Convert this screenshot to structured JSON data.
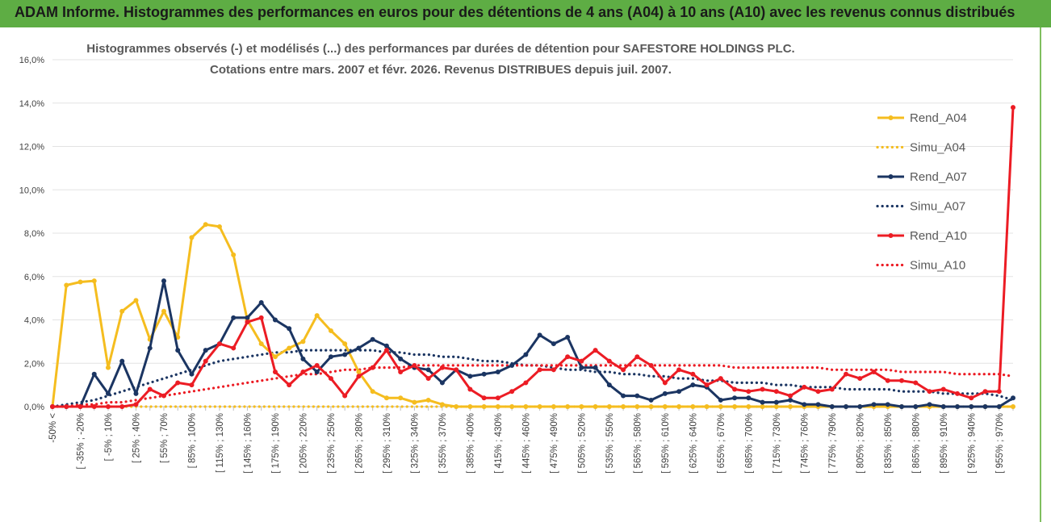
{
  "header": {
    "title": "ADAM Informe. Histogrammes des performances en euros pour des détentions de 4 ans (A04) à 10 ans (A10) avec les revenus connus distribués"
  },
  "colors": {
    "header_bg": "#5ead44",
    "a04": "#f5bd1f",
    "a07": "#1b3562",
    "a10": "#ec1c24"
  },
  "chart_data": {
    "type": "line",
    "title": [
      "Histogrammes observés (-) et modélisés (...) des performances par durées de détention pour SAFESTORE HOLDINGS PLC.",
      "Cotations entre mars. 2007 et févr. 2026. Revenus DISTRIBUES depuis juil. 2007."
    ],
    "ylim": [
      0,
      0.16
    ],
    "yticks": [
      0,
      0.02,
      0.04,
      0.06,
      0.08,
      0.1,
      0.12,
      0.14,
      0.16
    ],
    "ytick_labels": [
      "0,0%",
      "2,0%",
      "4,0%",
      "6,0%",
      "8,0%",
      "10,0%",
      "12,0%",
      "14,0%",
      "16,0%"
    ],
    "x_labels": [
      "-50% <",
      "[ -35% ; -20%",
      "[ -5% ; 10%",
      "[ 25% ; 40%",
      "[ 55% ; 70%",
      "[ 85% ; 100%",
      "[ 115% ; 130%",
      "[ 145% ; 160%",
      "[ 175% ; 190%",
      "[ 205% ; 220%",
      "[ 235% ; 250%",
      "[ 265% ; 280%",
      "[ 295% ; 310%",
      "[ 325% ; 340%",
      "[ 355% ; 370%",
      "[ 385% ; 400%",
      "[ 415% ; 430%",
      "[ 445% ; 460%",
      "[ 475% ; 490%",
      "[ 505% ; 520%",
      "[ 535% ; 550%",
      "[ 565% ; 580%",
      "[ 595% ; 610%",
      "[ 625% ; 640%",
      "[ 655% ; 670%",
      "[ 685% ; 700%",
      "[ 715% ; 730%",
      "[ 745% ; 760%",
      "[ 775% ; 790%",
      "[ 805% ; 820%",
      "[ 835% ; 850%",
      "[ 865% ; 880%",
      "[ 895% ; 910%",
      "[ 925% ; 940%",
      "[ 955% ; 970%"
    ],
    "categories_count": 70,
    "series": [
      {
        "name": "Rend_A04",
        "style": "solid",
        "color": "#f5bd1f",
        "values": [
          0.0,
          0.056,
          0.0575,
          0.058,
          0.018,
          0.044,
          0.049,
          0.031,
          0.044,
          0.032,
          0.078,
          0.084,
          0.083,
          0.07,
          0.04,
          0.029,
          0.023,
          0.027,
          0.03,
          0.042,
          0.035,
          0.029,
          0.016,
          0.007,
          0.004,
          0.004,
          0.002,
          0.003,
          0.001,
          0.0,
          0.0,
          0.0,
          0.0,
          0.0,
          0.0,
          0.0,
          0.0,
          0.0,
          0.0,
          0.0,
          0.0,
          0.0,
          0.0,
          0.0,
          0.0,
          0.0,
          0.0,
          0.0,
          0.0,
          0.0,
          0.0,
          0.0,
          0.0,
          0.0,
          0.0,
          0.0,
          0.0,
          0.0,
          0.0,
          0.0,
          0.0,
          0.0,
          0.0,
          0.0,
          0.0,
          0.0,
          0.0,
          0.0,
          0.0,
          0.0
        ]
      },
      {
        "name": "Simu_A04",
        "style": "dotted",
        "color": "#f5bd1f",
        "values": [
          0.0,
          0.0,
          0.0,
          0.0,
          0.0,
          0.0,
          0.0,
          0.0,
          0.0,
          0.0,
          0.0,
          0.0,
          0.0,
          0.0,
          0.0,
          0.0,
          0.0,
          0.0,
          0.0,
          0.0,
          0.0,
          0.0,
          0.0,
          0.0,
          0.0,
          0.0,
          0.0,
          0.0,
          0.0,
          0.0,
          0.0,
          0.0,
          0.0,
          0.0,
          0.0,
          0.0,
          0.0,
          0.0,
          0.0,
          0.0,
          0.0,
          0.0,
          0.0,
          0.0,
          0.0,
          0.0,
          0.0,
          0.0,
          0.0,
          0.0,
          0.0,
          0.0,
          0.0,
          0.0,
          0.0,
          0.0,
          0.0,
          0.0,
          0.0,
          0.0,
          0.0,
          0.0,
          0.0,
          0.0,
          0.0,
          0.0,
          0.0,
          0.0,
          0.0,
          0.0
        ]
      },
      {
        "name": "Rend_A07",
        "style": "solid",
        "color": "#1b3562",
        "values": [
          0.0,
          0.0,
          0.0,
          0.015,
          0.006,
          0.021,
          0.006,
          0.027,
          0.058,
          0.026,
          0.015,
          0.026,
          0.029,
          0.041,
          0.041,
          0.048,
          0.04,
          0.036,
          0.022,
          0.016,
          0.023,
          0.024,
          0.027,
          0.031,
          0.028,
          0.022,
          0.018,
          0.017,
          0.011,
          0.017,
          0.014,
          0.015,
          0.016,
          0.019,
          0.024,
          0.033,
          0.029,
          0.032,
          0.018,
          0.018,
          0.01,
          0.005,
          0.005,
          0.003,
          0.006,
          0.007,
          0.01,
          0.009,
          0.003,
          0.004,
          0.004,
          0.002,
          0.002,
          0.003,
          0.001,
          0.001,
          0.0,
          0.0,
          0.0,
          0.001,
          0.001,
          0.0,
          0.0,
          0.001,
          0.0,
          0.0,
          0.0,
          0.0,
          0.0,
          0.004
        ]
      },
      {
        "name": "Simu_A07",
        "style": "dotted",
        "color": "#1b3562",
        "values": [
          0.0,
          0.001,
          0.002,
          0.003,
          0.005,
          0.007,
          0.009,
          0.011,
          0.013,
          0.015,
          0.017,
          0.019,
          0.021,
          0.022,
          0.023,
          0.024,
          0.025,
          0.025,
          0.026,
          0.026,
          0.026,
          0.026,
          0.026,
          0.026,
          0.025,
          0.025,
          0.024,
          0.024,
          0.023,
          0.023,
          0.022,
          0.021,
          0.021,
          0.02,
          0.019,
          0.019,
          0.018,
          0.017,
          0.017,
          0.016,
          0.016,
          0.015,
          0.015,
          0.014,
          0.014,
          0.013,
          0.013,
          0.012,
          0.012,
          0.011,
          0.011,
          0.011,
          0.01,
          0.01,
          0.009,
          0.009,
          0.009,
          0.008,
          0.008,
          0.008,
          0.008,
          0.007,
          0.007,
          0.007,
          0.006,
          0.006,
          0.006,
          0.006,
          0.005,
          0.003
        ]
      },
      {
        "name": "Rend_A10",
        "style": "solid",
        "color": "#ec1c24",
        "values": [
          0.0,
          0.0,
          0.0,
          0.0,
          0.0,
          0.0,
          0.001,
          0.008,
          0.005,
          0.011,
          0.01,
          0.021,
          0.029,
          0.027,
          0.039,
          0.041,
          0.016,
          0.01,
          0.016,
          0.019,
          0.013,
          0.005,
          0.014,
          0.018,
          0.026,
          0.016,
          0.019,
          0.013,
          0.018,
          0.017,
          0.008,
          0.004,
          0.004,
          0.007,
          0.011,
          0.017,
          0.017,
          0.023,
          0.021,
          0.026,
          0.021,
          0.017,
          0.023,
          0.019,
          0.011,
          0.017,
          0.015,
          0.01,
          0.013,
          0.008,
          0.007,
          0.008,
          0.007,
          0.005,
          0.009,
          0.007,
          0.008,
          0.015,
          0.013,
          0.016,
          0.012,
          0.012,
          0.011,
          0.007,
          0.008,
          0.006,
          0.004,
          0.007,
          0.007,
          0.138
        ]
      },
      {
        "name": "Simu_A10",
        "style": "dotted",
        "color": "#ec1c24",
        "values": [
          0.0,
          0.0,
          0.001,
          0.001,
          0.002,
          0.002,
          0.003,
          0.004,
          0.005,
          0.006,
          0.007,
          0.008,
          0.009,
          0.01,
          0.011,
          0.012,
          0.013,
          0.014,
          0.015,
          0.015,
          0.016,
          0.017,
          0.017,
          0.018,
          0.018,
          0.018,
          0.019,
          0.019,
          0.019,
          0.019,
          0.019,
          0.019,
          0.019,
          0.019,
          0.019,
          0.019,
          0.019,
          0.019,
          0.019,
          0.019,
          0.019,
          0.019,
          0.019,
          0.019,
          0.019,
          0.019,
          0.019,
          0.019,
          0.019,
          0.018,
          0.018,
          0.018,
          0.018,
          0.018,
          0.018,
          0.018,
          0.017,
          0.017,
          0.017,
          0.017,
          0.017,
          0.016,
          0.016,
          0.016,
          0.016,
          0.015,
          0.015,
          0.015,
          0.015,
          0.014
        ]
      }
    ],
    "legend_position": "top-right"
  }
}
